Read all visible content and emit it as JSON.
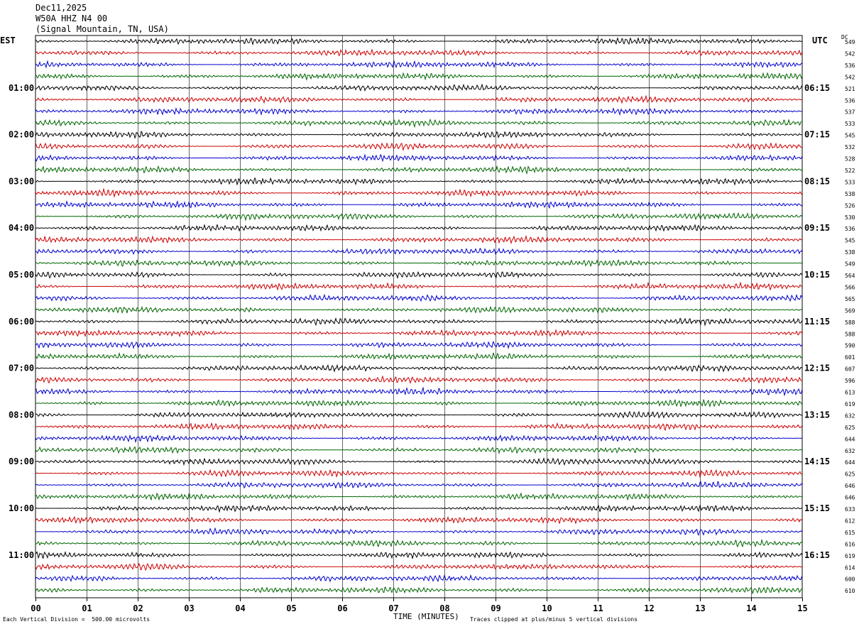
{
  "header": {
    "date": "Dec11,2025",
    "station": "W50A HHZ N4 00",
    "location": "(Signal Mountain, TN, USA)"
  },
  "left_tz": "EST",
  "right_tz": "UTC",
  "dc_label": "DC",
  "footer": {
    "scale_note": "Each Vertical Division =  500.00 microvolts",
    "xlabel": "TIME (MINUTES)",
    "clip_note": "Traces clipped at plus/minus 5 vertical divisions"
  },
  "colors": {
    "trace_cycle": [
      "#000000",
      "#cc0000",
      "#0000cc",
      "#006600"
    ],
    "grid": "#000000"
  },
  "chart_data": {
    "type": "line",
    "title": "W50A HHZ N4 00",
    "xlabel": "TIME (MINUTES)",
    "xlim": [
      0,
      15
    ],
    "x_ticks": [
      "00",
      "01",
      "02",
      "03",
      "04",
      "05",
      "06",
      "07",
      "08",
      "09",
      "10",
      "11",
      "12",
      "13",
      "14",
      "15"
    ],
    "est_labels": [
      "01:00",
      "02:00",
      "03:00",
      "04:00",
      "05:00",
      "06:00",
      "07:00",
      "08:00",
      "09:00",
      "10:00",
      "11:00"
    ],
    "utc_labels": [
      "06:15",
      "07:15",
      "08:15",
      "09:15",
      "10:15",
      "11:15",
      "12:15",
      "13:15",
      "14:15",
      "15:15",
      "16:15"
    ],
    "row_count": 48,
    "rows_per_hour": 4,
    "dc_offsets": [
      549,
      542,
      536,
      542,
      521,
      536,
      537,
      533,
      545,
      532,
      528,
      522,
      533,
      538,
      526,
      530,
      536,
      545,
      538,
      549,
      564,
      566,
      565,
      569,
      588,
      588,
      590,
      601,
      607,
      596,
      613,
      619,
      632,
      625,
      644,
      632,
      644,
      625,
      646,
      646,
      633,
      612,
      615,
      616,
      619,
      614,
      600,
      610
    ],
    "series_note_cycle": [
      "black",
      "red",
      "blue",
      "green"
    ]
  }
}
